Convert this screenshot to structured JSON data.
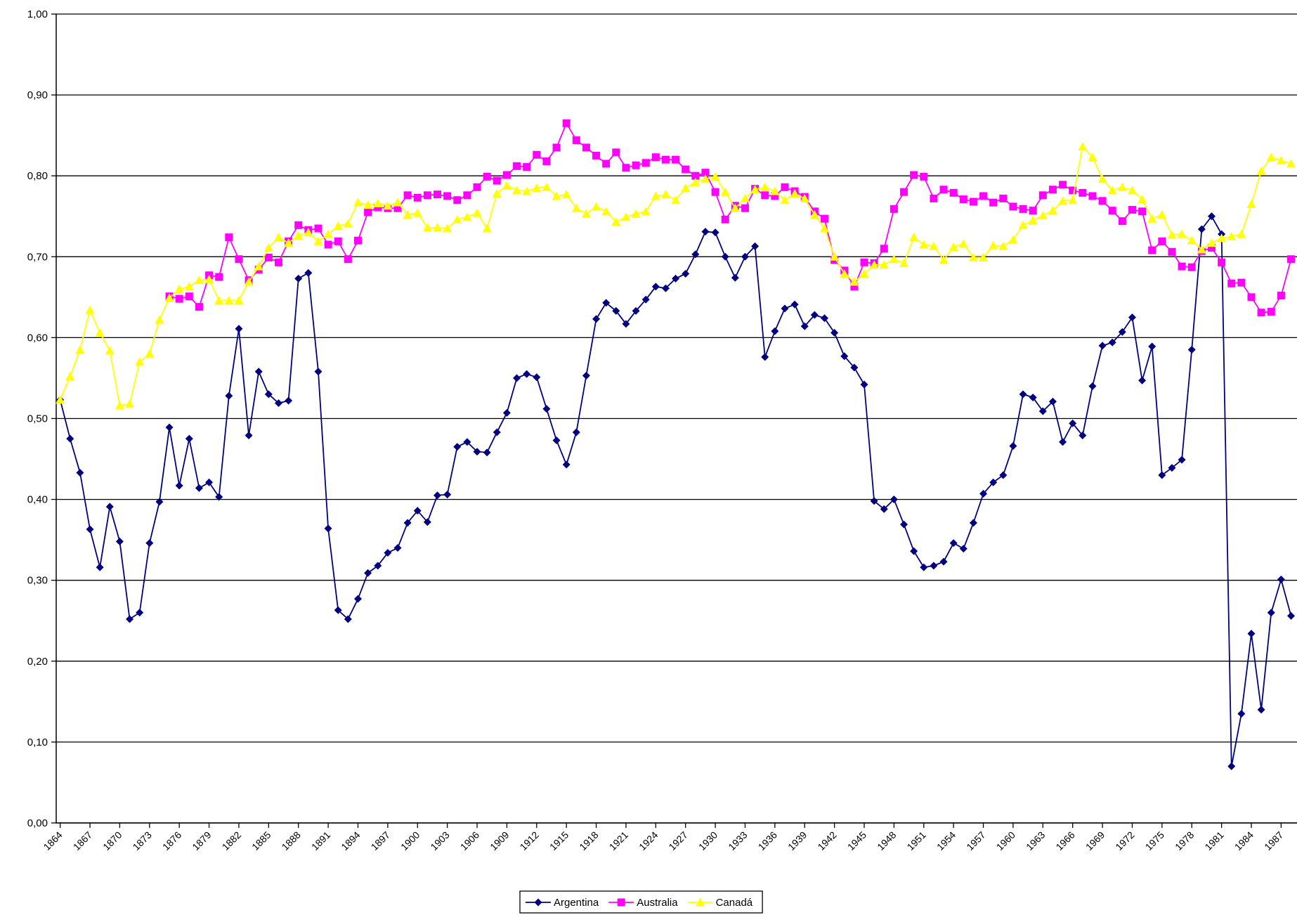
{
  "chart_data": {
    "type": "line",
    "x": [
      1864,
      1865,
      1866,
      1867,
      1868,
      1869,
      1870,
      1871,
      1872,
      1873,
      1874,
      1875,
      1876,
      1877,
      1878,
      1879,
      1880,
      1881,
      1882,
      1883,
      1884,
      1885,
      1886,
      1887,
      1888,
      1889,
      1890,
      1891,
      1892,
      1893,
      1894,
      1895,
      1896,
      1897,
      1898,
      1899,
      1900,
      1901,
      1902,
      1903,
      1904,
      1905,
      1906,
      1907,
      1908,
      1909,
      1910,
      1911,
      1912,
      1913,
      1914,
      1915,
      1916,
      1917,
      1918,
      1919,
      1920,
      1921,
      1922,
      1923,
      1924,
      1925,
      1926,
      1927,
      1928,
      1929,
      1930,
      1931,
      1932,
      1933,
      1934,
      1935,
      1936,
      1937,
      1938,
      1939,
      1940,
      1941,
      1942,
      1943,
      1944,
      1945,
      1946,
      1947,
      1948,
      1949,
      1950,
      1951,
      1952,
      1953,
      1954,
      1955,
      1956,
      1957,
      1958,
      1959,
      1960,
      1961,
      1962,
      1963,
      1964,
      1965,
      1966,
      1967,
      1968,
      1969,
      1970,
      1971,
      1972,
      1973,
      1974,
      1975,
      1976,
      1977,
      1978,
      1979,
      1980,
      1981,
      1982,
      1983,
      1984,
      1985,
      1986,
      1987,
      1988
    ],
    "series": [
      {
        "name": "Argentina",
        "color": "#000080",
        "marker": "diamond",
        "values": [
          0.523,
          0.475,
          0.433,
          0.363,
          0.316,
          0.391,
          0.348,
          0.252,
          0.26,
          0.346,
          0.397,
          0.489,
          0.417,
          0.475,
          0.414,
          0.421,
          0.403,
          0.528,
          0.611,
          0.479,
          0.558,
          0.53,
          0.519,
          0.522,
          0.673,
          0.68,
          0.558,
          0.364,
          0.263,
          0.252,
          0.277,
          0.309,
          0.318,
          0.334,
          0.34,
          0.371,
          0.386,
          0.372,
          0.405,
          0.406,
          0.465,
          0.471,
          0.459,
          0.458,
          0.483,
          0.507,
          0.55,
          0.555,
          0.551,
          0.512,
          0.473,
          0.443,
          0.483,
          0.553,
          0.623,
          0.643,
          0.633,
          0.617,
          0.633,
          0.647,
          0.663,
          0.661,
          0.673,
          0.679,
          0.703,
          0.731,
          0.73,
          0.7,
          0.674,
          0.7,
          0.713,
          0.576,
          0.608,
          0.636,
          0.641,
          0.614,
          0.628,
          0.624,
          0.606,
          0.577,
          0.563,
          0.542,
          0.398,
          0.388,
          0.4,
          0.369,
          0.336,
          0.316,
          0.318,
          0.323,
          0.346,
          0.339,
          0.371,
          0.407,
          0.421,
          0.43,
          0.466,
          0.53,
          0.526,
          0.509,
          0.521,
          0.471,
          0.494,
          0.479,
          0.54,
          0.59,
          0.594,
          0.607,
          0.625,
          0.547,
          0.589,
          0.43,
          0.439,
          0.449,
          0.585,
          0.734,
          0.75,
          0.728,
          0.07,
          0.135,
          0.234,
          0.14,
          0.26,
          0.301,
          0.256
        ]
      },
      {
        "name": "Australia",
        "color": "#ff00ff",
        "marker": "square",
        "values": [
          null,
          null,
          null,
          null,
          null,
          null,
          null,
          null,
          null,
          null,
          null,
          0.651,
          0.648,
          0.651,
          0.638,
          0.677,
          0.675,
          0.724,
          0.697,
          0.671,
          0.684,
          0.699,
          0.693,
          0.719,
          0.739,
          0.733,
          0.735,
          0.715,
          0.719,
          0.697,
          0.72,
          0.755,
          0.761,
          0.76,
          0.76,
          0.776,
          0.773,
          0.776,
          0.777,
          0.775,
          0.77,
          0.776,
          0.786,
          0.799,
          0.794,
          0.801,
          0.812,
          0.811,
          0.826,
          0.818,
          0.835,
          0.865,
          0.844,
          0.835,
          0.825,
          0.815,
          0.829,
          0.81,
          0.813,
          0.816,
          0.823,
          0.82,
          0.82,
          0.808,
          0.8,
          0.804,
          0.78,
          0.746,
          0.763,
          0.76,
          0.784,
          0.776,
          0.775,
          0.786,
          0.781,
          0.774,
          0.756,
          0.747,
          0.696,
          0.683,
          0.663,
          0.693,
          0.692,
          0.71,
          0.759,
          0.78,
          0.801,
          0.799,
          0.772,
          0.783,
          0.779,
          0.771,
          0.768,
          0.775,
          0.767,
          0.772,
          0.762,
          0.759,
          0.757,
          0.776,
          0.783,
          0.789,
          0.782,
          0.779,
          0.775,
          0.769,
          0.757,
          0.744,
          0.758,
          0.756,
          0.708,
          0.719,
          0.706,
          0.688,
          0.687,
          0.707,
          0.711,
          0.693,
          0.667,
          0.668,
          0.65,
          0.631,
          0.632,
          0.652,
          0.697
        ]
      },
      {
        "name": "Canadá",
        "color": "#ffff00",
        "marker": "triangle",
        "values": [
          0.523,
          0.552,
          0.585,
          0.634,
          0.606,
          0.584,
          0.516,
          0.518,
          0.57,
          0.58,
          0.622,
          0.649,
          0.66,
          0.663,
          0.671,
          0.672,
          0.646,
          0.646,
          0.646,
          0.669,
          0.688,
          0.711,
          0.724,
          0.717,
          0.726,
          0.73,
          0.719,
          0.728,
          0.738,
          0.741,
          0.767,
          0.764,
          0.766,
          0.763,
          0.767,
          0.752,
          0.754,
          0.736,
          0.736,
          0.735,
          0.746,
          0.749,
          0.754,
          0.735,
          0.778,
          0.788,
          0.782,
          0.781,
          0.785,
          0.786,
          0.775,
          0.777,
          0.76,
          0.753,
          0.762,
          0.756,
          0.743,
          0.749,
          0.753,
          0.756,
          0.775,
          0.777,
          0.77,
          0.785,
          0.792,
          0.796,
          0.799,
          0.78,
          0.76,
          0.772,
          0.783,
          0.786,
          0.781,
          0.77,
          0.778,
          0.772,
          0.752,
          0.735,
          0.7,
          0.679,
          0.669,
          0.679,
          0.69,
          0.69,
          0.697,
          0.692,
          0.724,
          0.715,
          0.713,
          0.696,
          0.712,
          0.716,
          0.699,
          0.699,
          0.714,
          0.713,
          0.721,
          0.739,
          0.745,
          0.751,
          0.757,
          0.769,
          0.77,
          0.836,
          0.823,
          0.796,
          0.782,
          0.786,
          0.782,
          0.771,
          0.747,
          0.752,
          0.727,
          0.728,
          0.72,
          0.709,
          0.717,
          0.723,
          0.725,
          0.728,
          0.765,
          0.806,
          0.823,
          0.819,
          0.815
        ]
      }
    ],
    "xlim": [
      1863.6,
      1988.6
    ],
    "xticks": [
      1864,
      1867,
      1870,
      1873,
      1876,
      1879,
      1882,
      1885,
      1888,
      1891,
      1894,
      1897,
      1900,
      1903,
      1906,
      1909,
      1912,
      1915,
      1918,
      1921,
      1924,
      1927,
      1930,
      1933,
      1936,
      1939,
      1942,
      1945,
      1948,
      1951,
      1954,
      1957,
      1960,
      1963,
      1966,
      1969,
      1972,
      1975,
      1978,
      1981,
      1984,
      1987
    ],
    "ylim": [
      0,
      1
    ],
    "yticks": [
      {
        "value": 0,
        "label": "0,00"
      },
      {
        "value": 0.1,
        "label": "0,10"
      },
      {
        "value": 0.2,
        "label": "0,20"
      },
      {
        "value": 0.3,
        "label": "0,30"
      },
      {
        "value": 0.4,
        "label": "0,40"
      },
      {
        "value": 0.5,
        "label": "0,50"
      },
      {
        "value": 0.6,
        "label": "0,60"
      },
      {
        "value": 0.7,
        "label": "0,70"
      },
      {
        "value": 0.8,
        "label": "0,80"
      },
      {
        "value": 0.9,
        "label": "0,90"
      },
      {
        "value": 1,
        "label": "1,00"
      }
    ],
    "grid": true,
    "legend": "bottom"
  }
}
